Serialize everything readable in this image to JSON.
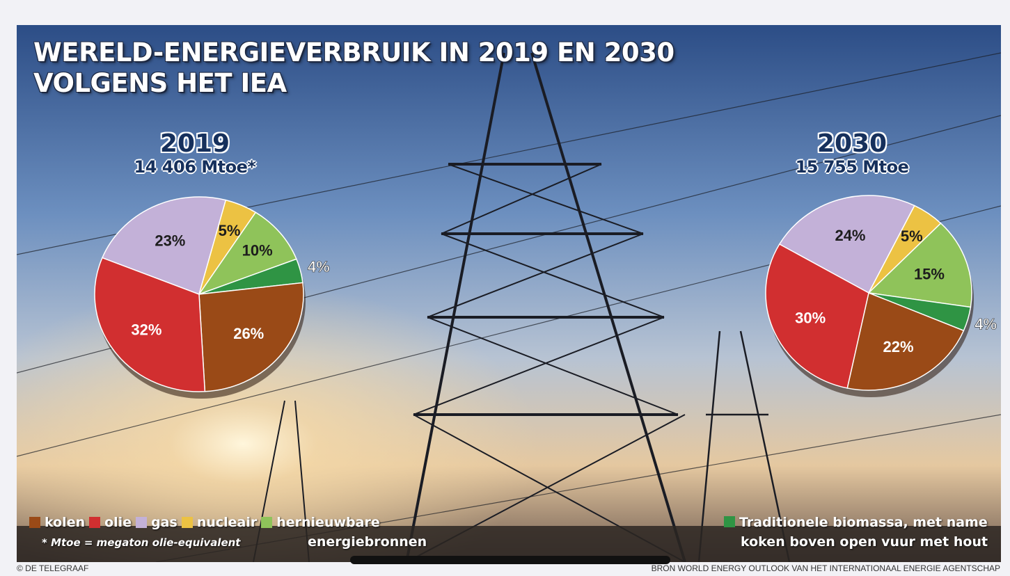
{
  "title": {
    "line1": "WERELD-ENERGIEVERBRUIK IN 2019 EN 2030",
    "line2": "VOLGENS HET IEA"
  },
  "colors": {
    "kolen": "#9a4a17",
    "olie": "#d12f30",
    "gas": "#c3b1d8",
    "nucleair": "#ecc243",
    "hernieuwbare": "#8fc35a",
    "biomassa": "#2f9444"
  },
  "chart_data": [
    {
      "type": "pie",
      "title": "2019",
      "subtitle": "14 406 Mtoe*",
      "slices": [
        {
          "key": "gas",
          "value": 23,
          "label": "23%"
        },
        {
          "key": "nucleair",
          "value": 5,
          "label": "5%"
        },
        {
          "key": "hernieuwbare",
          "value": 10,
          "label": "10%"
        },
        {
          "key": "biomassa",
          "value": 4,
          "label": "4%"
        },
        {
          "key": "kolen",
          "value": 26,
          "label": "26%"
        },
        {
          "key": "olie",
          "value": 32,
          "label": "32%"
        }
      ]
    },
    {
      "type": "pie",
      "title": "2030",
      "subtitle": "15 755 Mtoe",
      "slices": [
        {
          "key": "gas",
          "value": 24,
          "label": "24%"
        },
        {
          "key": "nucleair",
          "value": 5,
          "label": "5%"
        },
        {
          "key": "hernieuwbare",
          "value": 15,
          "label": "15%"
        },
        {
          "key": "biomassa",
          "value": 4,
          "label": "4%"
        },
        {
          "key": "kolen",
          "value": 22,
          "label": "22%"
        },
        {
          "key": "olie",
          "value": 30,
          "label": "30%"
        }
      ]
    }
  ],
  "legend": {
    "kolen": "kolen",
    "olie": "olie",
    "gas": "gas",
    "nucleair": "nucleair",
    "hernieuwbare_line1": "hernieuwbare",
    "hernieuwbare_line2": "energiebronnen",
    "biomassa_line1": "Traditionele biomassa, met name",
    "biomassa_line2": "koken boven open vuur met hout"
  },
  "footnote": "* Mtoe = megaton olie-equivalent",
  "credit_left": "© DE TELEGRAAF",
  "credit_right": "BRON WORLD ENERGY OUTLOOK VAN HET INTERNATIONAAL ENERGIE AGENTSCHAP"
}
